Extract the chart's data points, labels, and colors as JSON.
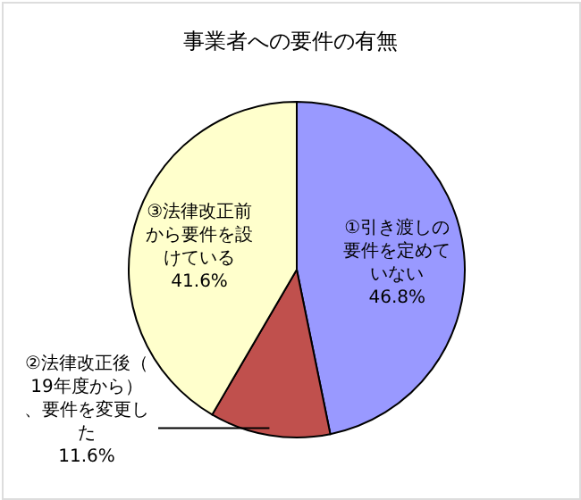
{
  "chart_data": {
    "type": "pie",
    "title": "事業者への要件の有無",
    "categories": [
      "①引き渡しの要件を定めていない",
      "②法律改正後（19年度から）、要件を変更した",
      "③法律改正前から要件を設けている"
    ],
    "values": [
      46.8,
      11.6,
      41.6
    ],
    "colors": [
      "#9999ff",
      "#c0504d",
      "#ffffcc"
    ],
    "value_labels": [
      "46.8%",
      "11.6%",
      "41.6%"
    ]
  }
}
